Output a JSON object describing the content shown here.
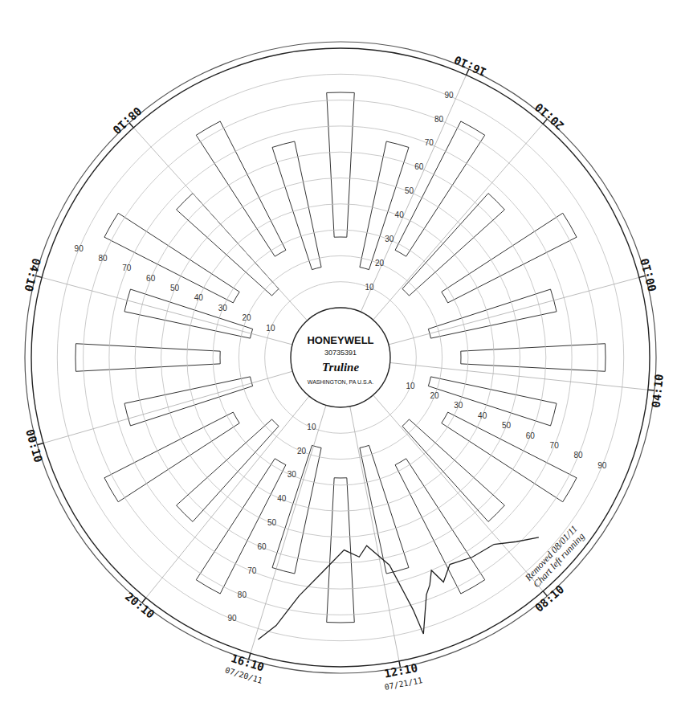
{
  "chart_data": {
    "type": "polar",
    "brand": [
      "HONEYWELL",
      "30735391",
      "Truline",
      "WASHINGTON, PA U.S.A."
    ],
    "x": [
      61.7,
      63.6,
      65.6,
      68.4,
      71.0,
      72.5,
      73.2,
      74.0,
      74.7,
      76.2,
      76.5,
      77.8,
      80.3,
      81.5,
      83.5,
      86.3,
      88.6,
      90.3,
      91.6
    ],
    "values": [
      84,
      79,
      74,
      73,
      71,
      76,
      70,
      75,
      78,
      92,
      82,
      63,
      54,
      58,
      55,
      64,
      74,
      87,
      94
    ],
    "color": "#222222",
    "xlim": [
      0,
      168
    ],
    "xticks": [
      {
        "value": 11.2,
        "label": "16:10"
      },
      {
        "value": 19.1,
        "label": "20:10"
      },
      {
        "value": 35.0,
        "label": "00:10"
      },
      {
        "value": 44.8,
        "label": "04:10"
      },
      {
        "value": 64.9,
        "label": "08:10"
      },
      {
        "value": 78.9,
        "label": "12:10"
      },
      {
        "value": 91.9,
        "label": "16:10"
      },
      {
        "value": 102.2,
        "label": "20:10"
      },
      {
        "value": 118.5,
        "label": "00:10"
      },
      {
        "value": 133.0,
        "label": "04:10"
      },
      {
        "value": 148.4,
        "label": "08:10"
      }
    ],
    "ylim": [
      0,
      100
    ],
    "yticks": [
      10,
      20,
      30,
      40,
      50,
      60,
      70,
      80,
      90
    ],
    "grid": true,
    "annotations": [
      {
        "text": "07/20/11",
        "x": 91.9
      },
      {
        "text": "07/21/11",
        "x": 78.9
      },
      {
        "text": "Chart left running",
        "x": 62,
        "y": 96
      },
      {
        "text": "Removed 08/01/11",
        "x": 62,
        "y": 92
      }
    ]
  }
}
